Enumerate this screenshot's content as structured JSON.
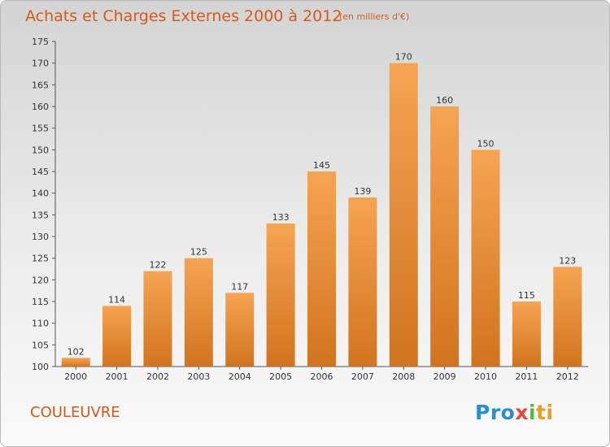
{
  "title": "Achats et Charges Externes 2000 à 2012",
  "unit_note": "(en milliers d'€)",
  "commune": "COULEUVRE",
  "logo": [
    "Pro",
    "x",
    "i",
    "ti"
  ],
  "colors": {
    "bar_top": "#f6a453",
    "bar_bottom": "#d1741f",
    "title": "#d35a1c"
  },
  "chart_data": {
    "type": "bar",
    "categories": [
      "2000",
      "2001",
      "2002",
      "2003",
      "2004",
      "2005",
      "2006",
      "2007",
      "2008",
      "2009",
      "2010",
      "2011",
      "2012"
    ],
    "values": [
      102,
      114,
      122,
      125,
      117,
      133,
      145,
      139,
      170,
      160,
      150,
      115,
      123
    ],
    "ylim": [
      100,
      175
    ],
    "yticks": [
      100,
      105,
      110,
      115,
      120,
      125,
      130,
      135,
      140,
      145,
      150,
      155,
      160,
      165,
      170,
      175
    ],
    "grid": false
  }
}
